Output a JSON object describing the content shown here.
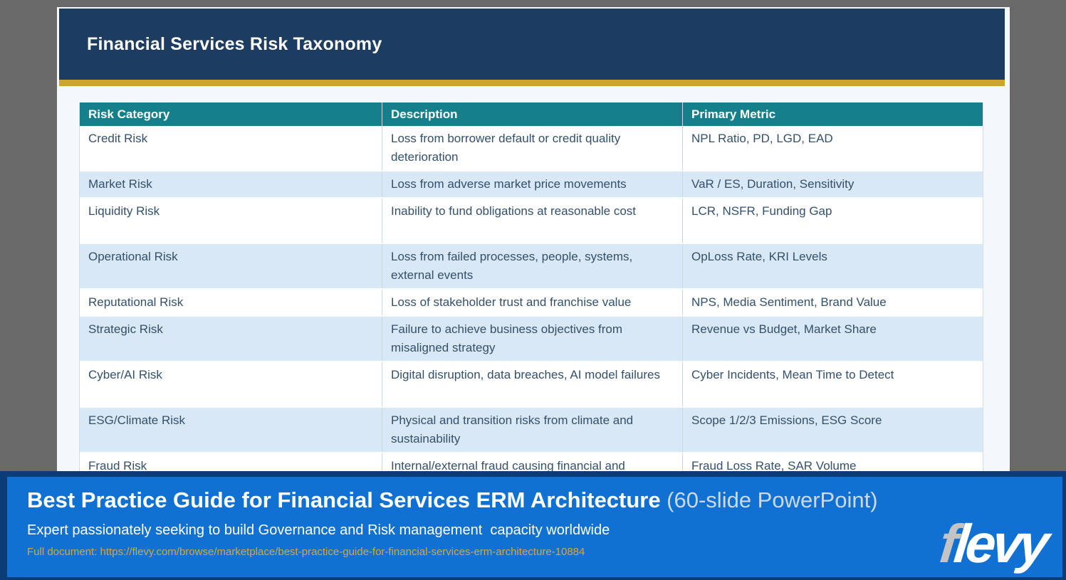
{
  "slide": {
    "title": "Financial Services Risk Taxonomy",
    "table": {
      "columns": [
        "Risk Category",
        "Description",
        "Primary Metric"
      ],
      "rows": [
        {
          "category": "Credit Risk",
          "description": "Loss from borrower default or credit quality deterioration",
          "metric": "NPL Ratio, PD, LGD, EAD"
        },
        {
          "category": "Market Risk",
          "description": "Loss from adverse market price movements",
          "metric": "VaR / ES, Duration, Sensitivity"
        },
        {
          "category": "Liquidity Risk",
          "description": "Inability to fund obligations at reasonable cost",
          "metric": "LCR, NSFR, Funding Gap"
        },
        {
          "category": "Operational Risk",
          "description": "Loss from failed processes, people, systems, external events",
          "metric": "OpLoss Rate, KRI Levels"
        },
        {
          "category": "Reputational Risk",
          "description": "Loss of stakeholder trust and franchise value",
          "metric": "NPS, Media Sentiment, Brand Value"
        },
        {
          "category": "Strategic Risk",
          "description": "Failure to achieve business objectives from misaligned strategy",
          "metric": "Revenue vs Budget, Market Share"
        },
        {
          "category": "Cyber/AI Risk",
          "description": "Digital disruption, data breaches, AI model failures",
          "metric": "Cyber Incidents, Mean Time to Detect"
        },
        {
          "category": "ESG/Climate Risk",
          "description": "Physical and transition risks from climate and sustainability",
          "metric": "Scope 1/2/3 Emissions, ESG Score"
        },
        {
          "category": "Fraud Risk",
          "description": "Internal/external fraud causing financial and",
          "metric": "Fraud Loss Rate, SAR Volume"
        }
      ]
    }
  },
  "footer": {
    "title_bold": "Best Practice Guide for Financial Services ERM Architecture",
    "title_suffix": " (60-slide PowerPoint)",
    "subtitle": "Expert passionately seeking to build Governance and Risk management  capacity worldwide",
    "link": "Full document: https://flevy.com/browse/marketplace/best-practice-guide-for-financial-services-erm-architecture-10884",
    "logo": {
      "gray": "f",
      "white": "levy"
    }
  },
  "colors": {
    "header_navy": "#1d3c61",
    "gold_stripe": "#cda42e",
    "table_header_teal": "#15808c",
    "row_alt_blue": "#d9e8f6",
    "cell_text": "#33506c",
    "footer_blue": "#1171d2",
    "footer_border_navy": "#0a3d77",
    "link_gold": "#d6a73a",
    "logo_gray": "#c3c3c3",
    "screen_gray": "#696969"
  }
}
